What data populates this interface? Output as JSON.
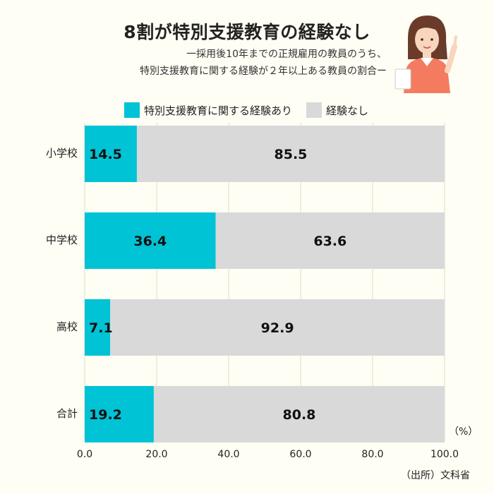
{
  "header": {
    "title": "8割が特別支援教育の経験なし",
    "subtitle_line1": "一採用後10年までの正規雇用の教員のうち、",
    "subtitle_line2": "特別支援教育に関する経験が２年以上ある教員の割合ー"
  },
  "legend": [
    {
      "label": "特別支援教育に関する経験あり",
      "color": "#00c3d5"
    },
    {
      "label": "経験なし",
      "color": "#d9d9d9"
    }
  ],
  "unit_label": "（%）",
  "source": "（出所）文科省",
  "colors": {
    "bar_primary": "#00c3d5",
    "bar_secondary": "#d9d9d9",
    "background": "#fefef4",
    "grid": "#dcdcd0"
  },
  "chart_data": {
    "type": "bar",
    "orientation": "horizontal",
    "stacked": true,
    "categories": [
      "小学校",
      "中学校",
      "高校",
      "合計"
    ],
    "series": [
      {
        "name": "特別支援教育に関する経験あり",
        "values": [
          14.5,
          36.4,
          7.1,
          19.2
        ]
      },
      {
        "name": "経験なし",
        "values": [
          85.5,
          63.6,
          92.9,
          80.8
        ]
      }
    ],
    "value_labels": [
      [
        "14.5",
        "36.4",
        "7.1",
        "19.2"
      ],
      [
        "85.5",
        "63.6",
        "92.9",
        "80.8"
      ]
    ],
    "xlim": [
      0,
      100
    ],
    "xticks": [
      0,
      20,
      40,
      60,
      80,
      100
    ],
    "xtick_labels": [
      "0.0",
      "20.0",
      "40.0",
      "60.0",
      "80.0",
      "100.0"
    ],
    "grid": true,
    "legend_position": "top"
  }
}
